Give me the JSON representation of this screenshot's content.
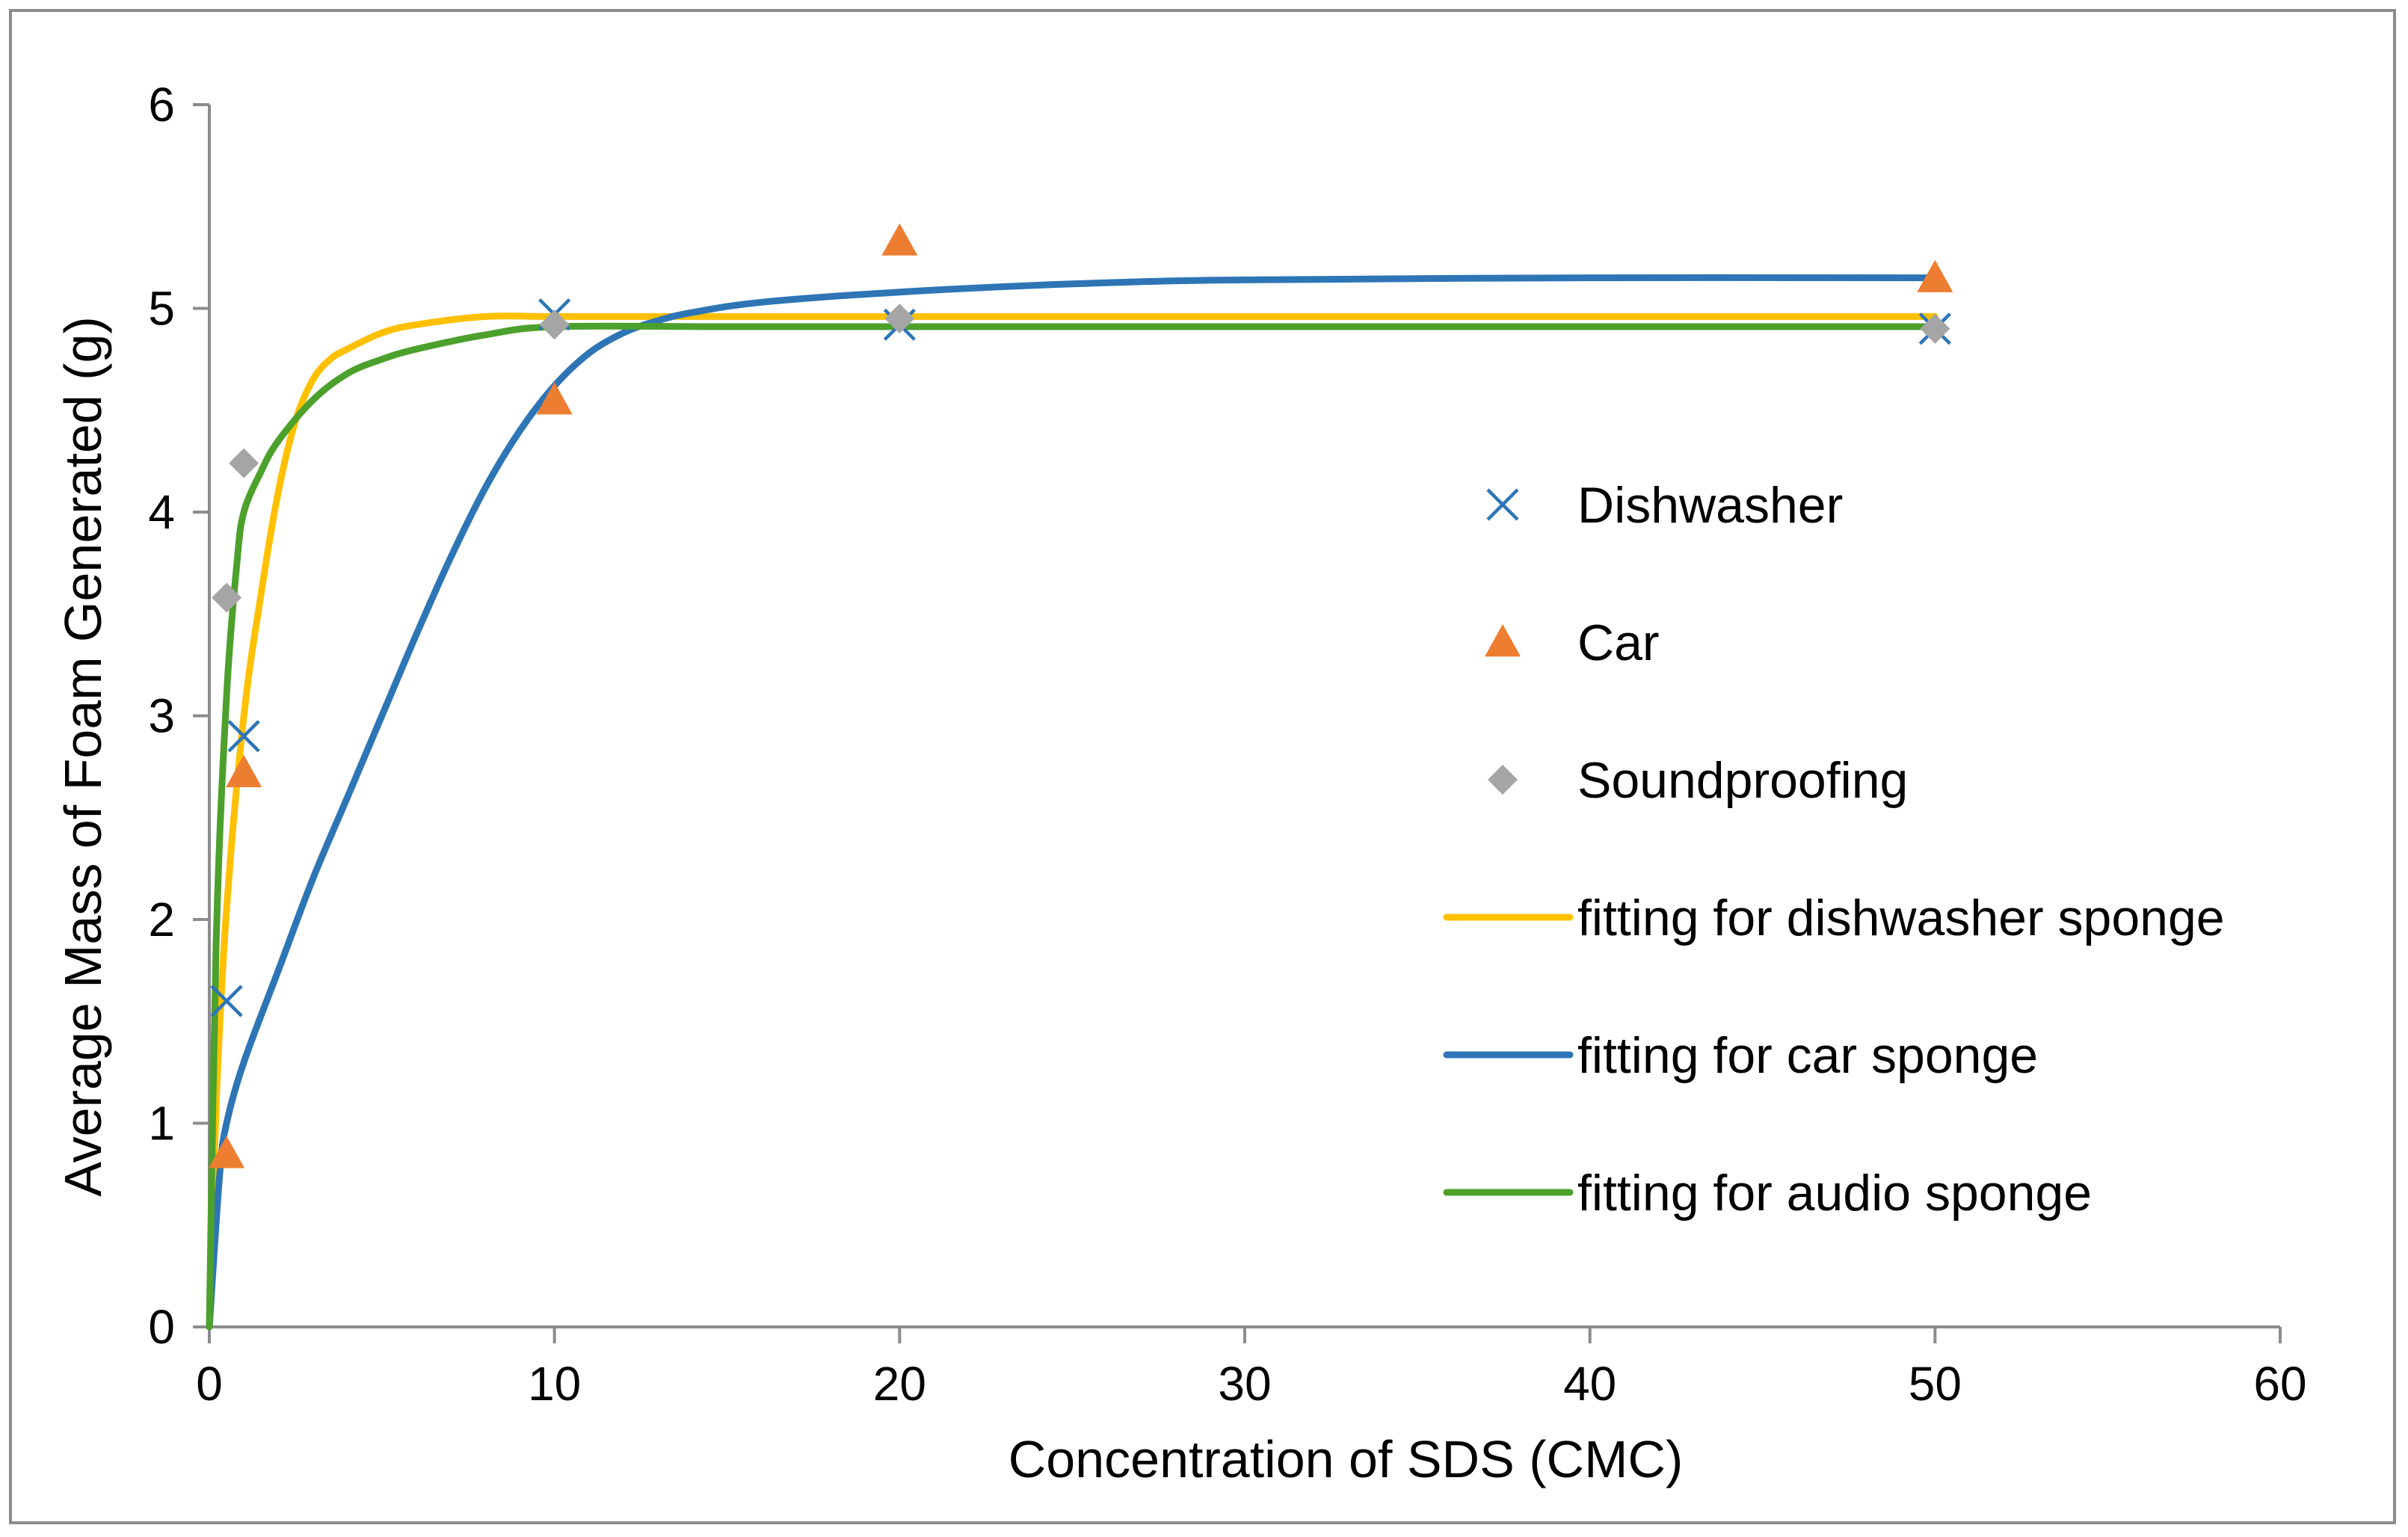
{
  "chart_data": {
    "type": "scatter",
    "title": "",
    "xlabel": "Concentration of SDS (CMC)",
    "ylabel": "Average Mass of Foam Generated (g)",
    "xlim": [
      0,
      60
    ],
    "ylim": [
      0,
      6
    ],
    "xticks": [
      0,
      10,
      20,
      30,
      40,
      50,
      60
    ],
    "yticks": [
      0,
      1,
      2,
      3,
      4,
      5,
      6
    ],
    "grid": false,
    "legend_position": "right",
    "series": [
      {
        "name": "Dishwasher",
        "kind": "markers",
        "marker": "x",
        "color": "#2e75b6",
        "x": [
          0.5,
          1,
          10,
          20,
          50
        ],
        "y": [
          1.6,
          2.9,
          4.97,
          4.92,
          4.9
        ]
      },
      {
        "name": "Car",
        "kind": "markers",
        "marker": "triangle",
        "color": "#ed7d31",
        "x": [
          0.5,
          1,
          10,
          20,
          50
        ],
        "y": [
          0.85,
          2.72,
          4.55,
          5.33,
          5.15
        ]
      },
      {
        "name": "Soundproofing",
        "kind": "markers",
        "marker": "diamond",
        "color": "#a5a5a5",
        "x": [
          0.5,
          1,
          10,
          20,
          50
        ],
        "y": [
          3.58,
          4.24,
          4.92,
          4.95,
          4.9
        ]
      },
      {
        "name": "fitting for dishwasher sponge",
        "kind": "line",
        "color": "#ffc000",
        "x": [
          0,
          0.2,
          0.5,
          1,
          1.5,
          2,
          2.5,
          3,
          3.5,
          4,
          5,
          6,
          8,
          10,
          15,
          20,
          30,
          40,
          50
        ],
        "y": [
          0,
          1.1,
          2.05,
          3.0,
          3.6,
          4.1,
          4.45,
          4.65,
          4.75,
          4.8,
          4.88,
          4.92,
          4.96,
          4.96,
          4.96,
          4.96,
          4.96,
          4.96,
          4.96
        ]
      },
      {
        "name": "fitting for car sponge",
        "kind": "line",
        "color": "#2e75b6",
        "x": [
          0,
          0.3,
          0.5,
          1,
          2,
          3,
          4,
          5,
          6,
          7,
          8,
          9,
          10,
          11,
          12,
          13,
          14,
          16,
          20,
          25,
          30,
          40,
          50
        ],
        "y": [
          0,
          0.75,
          1.0,
          1.3,
          1.75,
          2.2,
          2.6,
          3.0,
          3.4,
          3.78,
          4.12,
          4.4,
          4.62,
          4.78,
          4.88,
          4.94,
          4.98,
          5.03,
          5.08,
          5.12,
          5.14,
          5.15,
          5.15
        ]
      },
      {
        "name": "fitting for audio sponge",
        "kind": "line",
        "color": "#4ca02c",
        "x": [
          0,
          0.2,
          0.5,
          0.8,
          1,
          1.5,
          2,
          3,
          4,
          5,
          6,
          8,
          10,
          15,
          20,
          30,
          40,
          50
        ],
        "y": [
          0,
          1.9,
          3.1,
          3.75,
          4.0,
          4.2,
          4.35,
          4.55,
          4.68,
          4.75,
          4.8,
          4.87,
          4.91,
          4.91,
          4.91,
          4.91,
          4.91,
          4.91
        ]
      }
    ]
  }
}
